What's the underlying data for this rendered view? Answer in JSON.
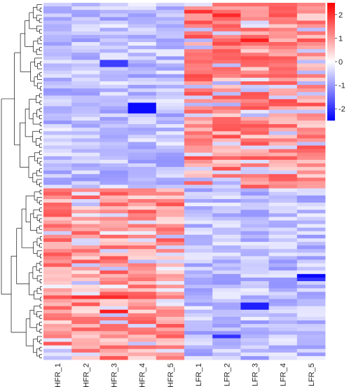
{
  "chart_data": {
    "type": "heatmap",
    "title": "",
    "xlabel": "",
    "ylabel": "",
    "columns": [
      "HFR_1",
      "HFR_2",
      "HFR_3",
      "HFR_4",
      "HFR_5",
      "LFR_1",
      "LFR_2",
      "LFR_3",
      "LFR_4",
      "LFR_5"
    ],
    "row_count": 100,
    "row_dendrogram": true,
    "color_scale": {
      "min": -2.5,
      "max": 2.5,
      "low_color": "#0000ff",
      "mid_color": "#ffffff",
      "high_color": "#ff0000",
      "ticks": [
        2,
        1,
        0,
        -1,
        -2
      ],
      "tick_labels": [
        "2",
        "1",
        "0",
        "-1",
        "-2"
      ]
    },
    "legend_position": "right",
    "clusters": [
      {
        "rows": [
          0,
          51
        ],
        "pattern": "HFR low (≈ -0.6), LFR high (≈ +1.2)"
      },
      {
        "rows": [
          52,
          99
        ],
        "pattern": "HFR high (≈ +1.1), LFR low (≈ -0.6)"
      }
    ],
    "notes_values": "Per-cell z-scores approximated by cluster means with deterministic variation; extreme cells: HFR_4 rows 28-30 ≈ -2.4, LFR_3 rows 84-85 ≈ -2.2, LFR_5 row 76 ≈ -2.4, HFR_2/HFR_3 rows 82 ≈ +2.0"
  }
}
